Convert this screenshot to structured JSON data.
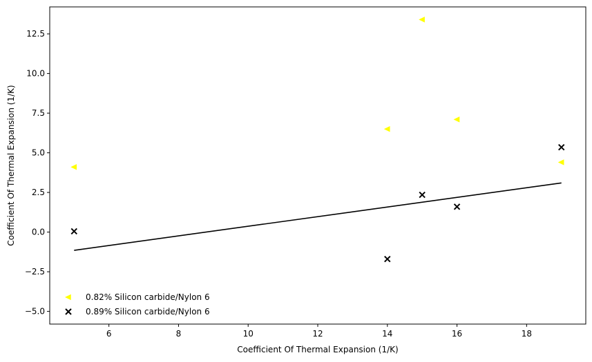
{
  "chart_data": {
    "type": "scatter",
    "xlabel": "Coefficient Of Thermal Expansion (1/K)",
    "ylabel": "Coefficient Of Thermal Expansion (1/K)",
    "xlim": [
      4.3,
      19.7
    ],
    "ylim": [
      -5.8,
      14.2
    ],
    "xticks": [
      6,
      8,
      10,
      12,
      14,
      16,
      18
    ],
    "yticks": [
      -5.0,
      -2.5,
      0.0,
      2.5,
      5.0,
      7.5,
      10.0,
      12.5
    ],
    "ytick_labels": [
      "−5.0",
      "−2.5",
      "0.0",
      "2.5",
      "5.0",
      "7.5",
      "10.0",
      "12.5"
    ],
    "grid": false,
    "legend_position": "lower-left",
    "series": [
      {
        "name": "0.82% Silicon carbide/Nylon 6",
        "marker": "triangle-left",
        "color": "#ffff00",
        "x": [
          5,
          14,
          15,
          16,
          19
        ],
        "y": [
          4.1,
          6.5,
          13.4,
          7.1,
          4.4
        ]
      },
      {
        "name": "0.89% Silicon carbide/Nylon 6",
        "marker": "x",
        "color": "#000000",
        "x": [
          5,
          14,
          15,
          16,
          19
        ],
        "y": [
          0.05,
          -1.7,
          2.35,
          1.6,
          5.35
        ]
      }
    ],
    "fit_line": {
      "color": "#000000",
      "x": [
        5,
        19
      ],
      "y": [
        -1.15,
        3.1
      ]
    }
  }
}
